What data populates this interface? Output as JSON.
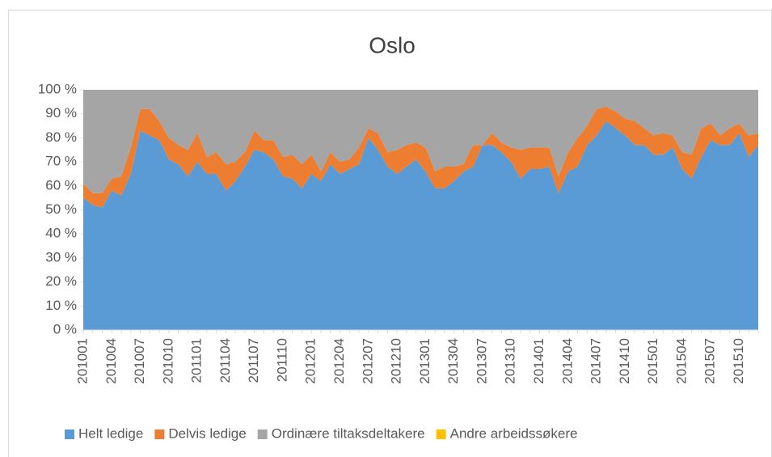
{
  "chart_data": {
    "type": "stacked_area_100",
    "title": "Oslo",
    "categories": [
      "201001",
      null,
      null,
      "201004",
      null,
      null,
      "201007",
      null,
      null,
      "201010",
      null,
      null,
      "201101",
      null,
      null,
      "201104",
      null,
      null,
      "201107",
      null,
      null,
      "201110",
      null,
      null,
      "201201",
      null,
      null,
      "201204",
      null,
      null,
      "201207",
      null,
      null,
      "201210",
      null,
      null,
      "201301",
      null,
      null,
      "201304",
      null,
      null,
      "201307",
      null,
      null,
      "201310",
      null,
      null,
      "201401",
      null,
      null,
      "201404",
      null,
      null,
      "201407",
      null,
      null,
      "201410",
      null,
      null,
      "201501",
      null,
      null,
      "201504",
      null,
      null,
      "201507",
      null,
      null,
      "201510",
      null,
      null
    ],
    "series": [
      {
        "name": "Helt ledige",
        "color": "#5b9bd5",
        "values": [
          55,
          52,
          51,
          58,
          56,
          65,
          83,
          81,
          79,
          71,
          69,
          64,
          70,
          65,
          65,
          58,
          62,
          68,
          75,
          74,
          71,
          64,
          63,
          59,
          65,
          62,
          69,
          65,
          67,
          69,
          80,
          75,
          68,
          65,
          68,
          71,
          66,
          59,
          59,
          62,
          66,
          68,
          77,
          77,
          74,
          70,
          63,
          67,
          67,
          68,
          57,
          66,
          68,
          77,
          81,
          87,
          84,
          81,
          77,
          77,
          73,
          73,
          76,
          67,
          63,
          72,
          79,
          77,
          77,
          82,
          72,
          77
        ]
      },
      {
        "name": "Delvis ledige",
        "color": "#ed7d31",
        "values": [
          6,
          5,
          6,
          5,
          8,
          11,
          9,
          11,
          8,
          9,
          8,
          11,
          12,
          7,
          9,
          11,
          8,
          6,
          8,
          5,
          8,
          8,
          10,
          10,
          8,
          4,
          5,
          5,
          4,
          7,
          4,
          7,
          6,
          10,
          9,
          7,
          10,
          7,
          9,
          6,
          3,
          9,
          0,
          5,
          4,
          6,
          12,
          9,
          9,
          8,
          7,
          8,
          12,
          8,
          11,
          6,
          7,
          7,
          10,
          7,
          8,
          9,
          5,
          7,
          10,
          12,
          7,
          4,
          7,
          4,
          9,
          5
        ]
      },
      {
        "name": "Ordinære tiltaksdeltakere",
        "color": "#a5a5a5",
        "values": [
          39,
          43,
          43,
          37,
          36,
          24,
          8,
          8,
          13,
          20,
          23,
          25,
          18,
          28,
          26,
          31,
          30,
          26,
          17,
          21,
          21,
          28,
          27,
          31,
          27,
          34,
          26,
          30,
          29,
          24,
          16,
          18,
          26,
          25,
          23,
          22,
          24,
          34,
          32,
          32,
          31,
          23,
          23,
          18,
          22,
          24,
          25,
          24,
          24,
          24,
          36,
          26,
          20,
          15,
          8,
          7,
          9,
          12,
          13,
          16,
          19,
          18,
          19,
          26,
          27,
          16,
          14,
          19,
          16,
          14,
          19,
          18
        ]
      },
      {
        "name": "Andre arbeidssøkere",
        "color": "#ffc000",
        "values": [
          0,
          0,
          0,
          0,
          0,
          0,
          0,
          0,
          0,
          0,
          0,
          0,
          0,
          0,
          0,
          0,
          0,
          0,
          0,
          0,
          0,
          0,
          0,
          0,
          0,
          0,
          0,
          0,
          0,
          0,
          0,
          0,
          0,
          0,
          0,
          0,
          0,
          0,
          0,
          0,
          0,
          0,
          0,
          0,
          0,
          0,
          0,
          0,
          0,
          0,
          0,
          0,
          0,
          0,
          0,
          0,
          0,
          0,
          0,
          0,
          0,
          0,
          0,
          0,
          0,
          0,
          0,
          0,
          0,
          0,
          0,
          0
        ]
      }
    ],
    "ylim": [
      0,
      100
    ],
    "yticks": [
      {
        "value": 0,
        "label": "0 %"
      },
      {
        "value": 10,
        "label": "10 %"
      },
      {
        "value": 20,
        "label": "20 %"
      },
      {
        "value": 30,
        "label": "30 %"
      },
      {
        "value": 40,
        "label": "40 %"
      },
      {
        "value": 50,
        "label": "50 %"
      },
      {
        "value": 60,
        "label": "60 %"
      },
      {
        "value": 70,
        "label": "70 %"
      },
      {
        "value": 80,
        "label": "80 %"
      },
      {
        "value": 90,
        "label": "90 %"
      },
      {
        "value": 100,
        "label": "100 %"
      }
    ],
    "legend": "bottom"
  }
}
